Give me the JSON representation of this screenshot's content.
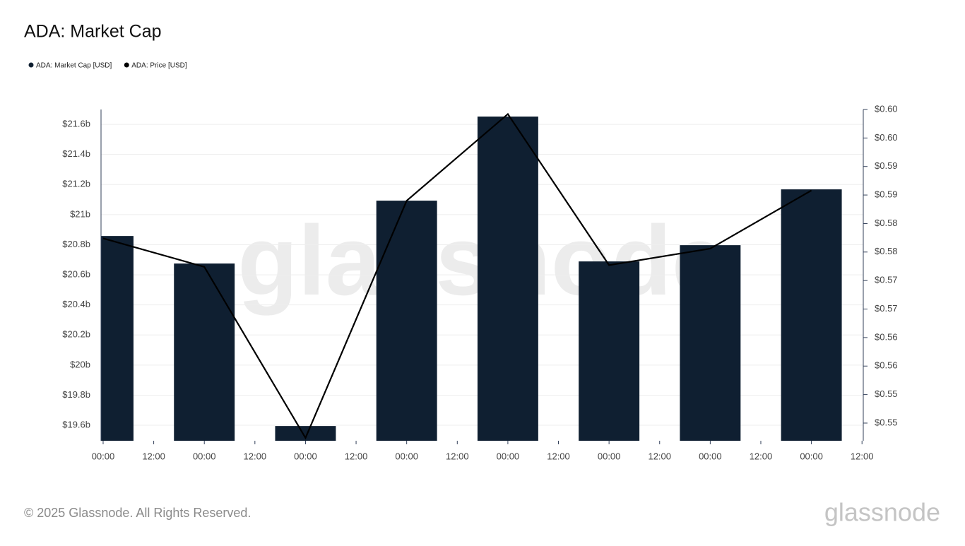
{
  "chart_data": {
    "type": "bar-line",
    "title": "ADA: Market Cap",
    "watermark": "glassnode",
    "x": [
      0,
      24,
      48,
      72,
      96,
      120,
      144,
      168
    ],
    "xlim": [
      -0.5,
      180.3
    ],
    "xticks": [
      {
        "value": 0,
        "label": "00:00"
      },
      {
        "value": 12,
        "label": "12:00"
      },
      {
        "value": 24,
        "label": "00:00"
      },
      {
        "value": 36,
        "label": "12:00"
      },
      {
        "value": 48,
        "label": "00:00"
      },
      {
        "value": 60,
        "label": "12:00"
      },
      {
        "value": 72,
        "label": "00:00"
      },
      {
        "value": 84,
        "label": "12:00"
      },
      {
        "value": 96,
        "label": "00:00"
      },
      {
        "value": 108,
        "label": "12:00"
      },
      {
        "value": 120,
        "label": "00:00"
      },
      {
        "value": 132,
        "label": "12:00"
      },
      {
        "value": 144,
        "label": "00:00"
      },
      {
        "value": 156,
        "label": "12:00"
      },
      {
        "value": 168,
        "label": "00:00"
      },
      {
        "value": 180,
        "label": "12:00"
      }
    ],
    "ylim": [
      19497000000,
      21699000000
    ],
    "yticks": [
      {
        "value": 19600000000,
        "label": "$19.6b"
      },
      {
        "value": 19800000000,
        "label": "$19.8b"
      },
      {
        "value": 20000000000,
        "label": "$20b"
      },
      {
        "value": 20200000000,
        "label": "$20.2b"
      },
      {
        "value": 20400000000,
        "label": "$20.4b"
      },
      {
        "value": 20600000000,
        "label": "$20.6b"
      },
      {
        "value": 20800000000,
        "label": "$20.8b"
      },
      {
        "value": 21000000000,
        "label": "$21b"
      },
      {
        "value": 21200000000,
        "label": "$21.2b"
      },
      {
        "value": 21400000000,
        "label": "$21.4b"
      },
      {
        "value": 21600000000,
        "label": "$21.6b"
      }
    ],
    "y2lim": [
      0.5444,
      0.6025
    ],
    "y2ticks": [
      {
        "value": 0.5475,
        "label": "$0.55"
      },
      {
        "value": 0.5525,
        "label": "$0.55"
      },
      {
        "value": 0.5575,
        "label": "$0.56"
      },
      {
        "value": 0.5625,
        "label": "$0.56"
      },
      {
        "value": 0.5675,
        "label": "$0.57"
      },
      {
        "value": 0.5725,
        "label": "$0.57"
      },
      {
        "value": 0.5775,
        "label": "$0.58"
      },
      {
        "value": 0.5825,
        "label": "$0.58"
      },
      {
        "value": 0.5875,
        "label": "$0.59"
      },
      {
        "value": 0.5925,
        "label": "$0.59"
      },
      {
        "value": 0.5975,
        "label": "$0.60"
      },
      {
        "value": 0.6025,
        "label": "$0.60"
      }
    ],
    "grid": true,
    "series": [
      {
        "name": "ADA: Market Cap [USD]",
        "type": "bar",
        "color": "#0f1f31",
        "bar_width": 14.4,
        "values": [
          20858000000,
          20675000000,
          19595000000,
          21093000000,
          21652000000,
          20689000000,
          20797000000,
          21168000000
        ]
      },
      {
        "name": "ADA: Price [USD]",
        "type": "line",
        "axis": "y2",
        "color": "#000000",
        "values": [
          0.5799,
          0.5749,
          0.5449,
          0.5865,
          0.6017,
          0.5752,
          0.5781,
          0.5883
        ]
      }
    ]
  },
  "footer": {
    "copyright": "© 2025 Glassnode. All Rights Reserved.",
    "logo": "glassnode"
  }
}
